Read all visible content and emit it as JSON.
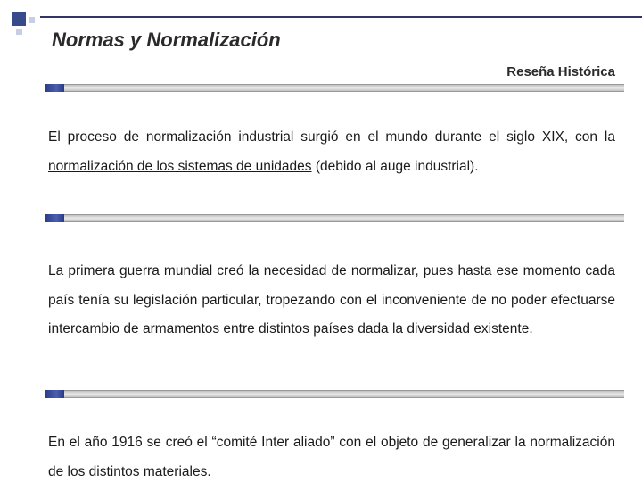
{
  "colors": {
    "bullet_primary": "#374a8c",
    "bullet_secondary": "#c6cde4",
    "top_line": "#333366",
    "bar_cap": "#2a3a85",
    "text": "#1a1a1a",
    "background": "#ffffff"
  },
  "typography": {
    "title_fontsize": 22,
    "subtitle_fontsize": 15,
    "body_fontsize": 15.5,
    "line_height": 2.1
  },
  "title": "Normas y Normalización",
  "subtitle": "Reseña Histórica",
  "paragraphs": {
    "p1_a": "El proceso de normalización industrial surgió en el mundo durante el siglo XIX, con la ",
    "p1_u": "normalización de los sistemas de unidades",
    "p1_b": " (debido al auge industrial).",
    "p2": "La primera guerra mundial creó la necesidad de normalizar, pues hasta ese momento cada país tenía su legislación particular, tropezando con el inconveniente de no poder efectuarse intercambio de armamentos entre distintos países dada la diversidad existente.",
    "p3": "En el año 1916 se creó el “comité Inter aliado” con el objeto de generalizar la normalización de los distintos materiales."
  }
}
